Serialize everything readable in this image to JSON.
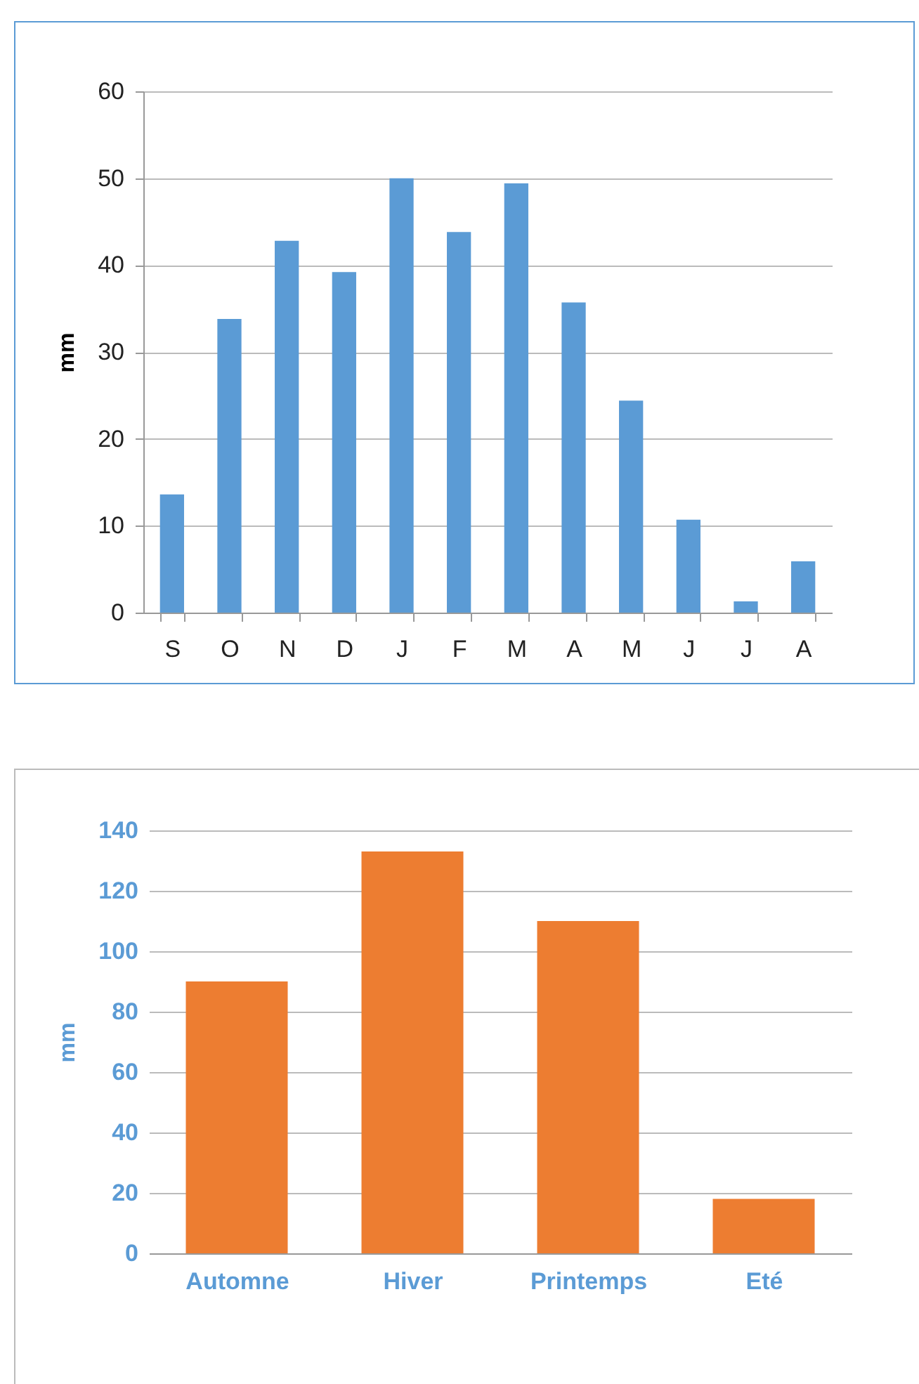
{
  "chart_data": [
    {
      "type": "bar",
      "ylabel": "mm",
      "categories": [
        "S",
        "O",
        "N",
        "D",
        "J",
        "F",
        "M",
        "A",
        "M",
        "J",
        "J",
        "A"
      ],
      "values": [
        13.6,
        33.8,
        42.8,
        39.2,
        50,
        43.8,
        49.4,
        35.7,
        24.4,
        10.7,
        1.3,
        5.9
      ],
      "color": "#5b9bd5",
      "ylim": [
        0,
        60
      ],
      "yticks": [
        0,
        10,
        20,
        30,
        40,
        50,
        60
      ],
      "grid": "y"
    },
    {
      "type": "bar",
      "ylabel": "mm",
      "categories": [
        "Automne",
        "Hiver",
        "Printemps",
        "Eté"
      ],
      "values": [
        90,
        133,
        110,
        18
      ],
      "color": "#ed7d31",
      "ylim": [
        0,
        140
      ],
      "yticks": [
        0,
        20,
        40,
        60,
        80,
        100,
        120,
        140
      ],
      "grid": "y"
    }
  ]
}
